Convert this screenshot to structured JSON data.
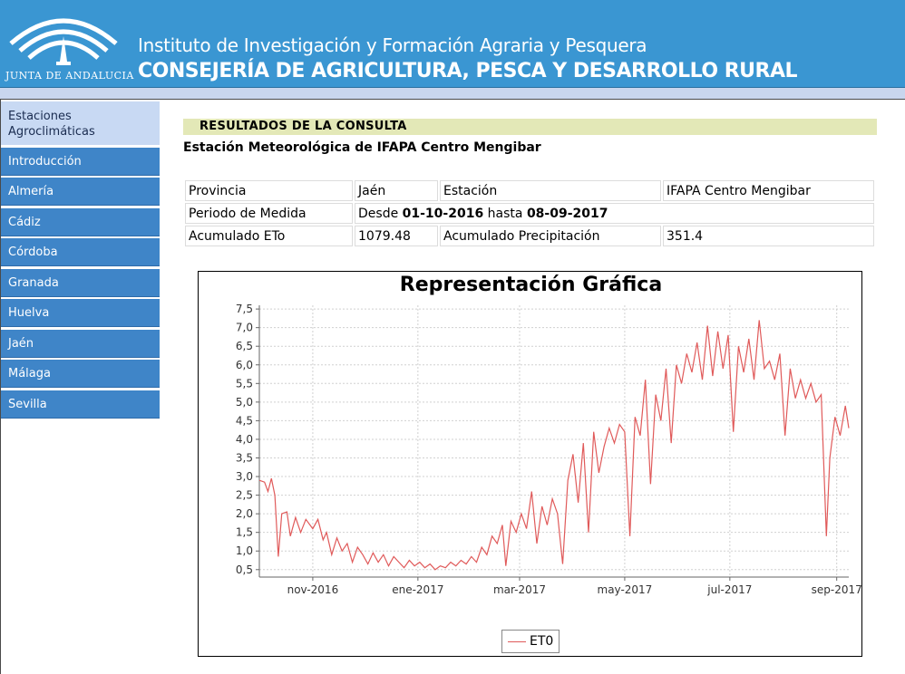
{
  "header": {
    "logo_text": "JUNTA DE ANDALUCIA",
    "institute": "Instituto de Investigación y Formación Agraria y Pesquera",
    "ministry": "CONSEJERÍA DE AGRICULTURA, PESCA Y DESARROLLO RURAL",
    "bg_color": "#3a96d2"
  },
  "sidebar": {
    "items": [
      {
        "label": "Estaciones Agroclimáticas",
        "active": true
      },
      {
        "label": "Introducción"
      },
      {
        "label": "Almería"
      },
      {
        "label": "Cádiz"
      },
      {
        "label": "Córdoba"
      },
      {
        "label": "Granada"
      },
      {
        "label": "Huelva"
      },
      {
        "label": "Jaén"
      },
      {
        "label": "Málaga"
      },
      {
        "label": "Sevilla"
      }
    ]
  },
  "results": {
    "heading": "RESULTADOS DE LA CONSULTA",
    "station_title": "Estación Meteorológica de IFAPA Centro Mengibar"
  },
  "info": {
    "provincia_label": "Provincia",
    "provincia_value": "Jaén",
    "estacion_label": "Estación",
    "estacion_value": "IFAPA Centro Mengibar",
    "periodo_label": "Periodo de Medida",
    "periodo_desde": "Desde",
    "periodo_start": "01-10-2016",
    "periodo_hasta": "hasta",
    "periodo_end": "08-09-2017",
    "eto_label": "Acumulado ETo",
    "eto_value": "1079.48",
    "precip_label": "Acumulado Precipitación",
    "precip_value": "351.4"
  },
  "chart_data": {
    "type": "line",
    "title": "Representación Gráfica",
    "xlabel": "",
    "ylabel": "",
    "ylim": [
      0.3,
      7.6
    ],
    "x_range": [
      "2016-10-01",
      "2017-09-08"
    ],
    "grid": true,
    "legend_position": "bottom",
    "y_ticks": [
      "0,5",
      "1,0",
      "1,5",
      "2,0",
      "2,5",
      "3,0",
      "3,5",
      "4,0",
      "4,5",
      "5,0",
      "5,5",
      "6,0",
      "6,5",
      "7,0",
      "7,5"
    ],
    "x_ticks": [
      {
        "date": "2016-11-01",
        "label": "nov-2016"
      },
      {
        "date": "2017-01-01",
        "label": "ene-2017"
      },
      {
        "date": "2017-03-01",
        "label": "mar-2017"
      },
      {
        "date": "2017-05-01",
        "label": "may-2017"
      },
      {
        "date": "2017-07-01",
        "label": "jul-2017"
      },
      {
        "date": "2017-09-01",
        "label": "sep-2017"
      }
    ],
    "series": [
      {
        "name": "ET0",
        "color": "#e05a5a",
        "points": [
          [
            "2016-10-01",
            2.9
          ],
          [
            "2016-10-04",
            2.85
          ],
          [
            "2016-10-06",
            2.6
          ],
          [
            "2016-10-08",
            2.95
          ],
          [
            "2016-10-10",
            2.5
          ],
          [
            "2016-10-12",
            0.85
          ],
          [
            "2016-10-14",
            2.0
          ],
          [
            "2016-10-17",
            2.05
          ],
          [
            "2016-10-19",
            1.4
          ],
          [
            "2016-10-22",
            1.9
          ],
          [
            "2016-10-25",
            1.5
          ],
          [
            "2016-10-28",
            1.85
          ],
          [
            "2016-11-01",
            1.6
          ],
          [
            "2016-11-04",
            1.85
          ],
          [
            "2016-11-07",
            1.3
          ],
          [
            "2016-11-09",
            1.5
          ],
          [
            "2016-11-12",
            0.9
          ],
          [
            "2016-11-15",
            1.35
          ],
          [
            "2016-11-18",
            1.0
          ],
          [
            "2016-11-21",
            1.2
          ],
          [
            "2016-11-24",
            0.7
          ],
          [
            "2016-11-27",
            1.1
          ],
          [
            "2016-11-30",
            0.9
          ],
          [
            "2016-12-03",
            0.65
          ],
          [
            "2016-12-06",
            0.95
          ],
          [
            "2016-12-09",
            0.7
          ],
          [
            "2016-12-12",
            0.9
          ],
          [
            "2016-12-15",
            0.6
          ],
          [
            "2016-12-18",
            0.85
          ],
          [
            "2016-12-21",
            0.7
          ],
          [
            "2016-12-24",
            0.55
          ],
          [
            "2016-12-27",
            0.75
          ],
          [
            "2016-12-30",
            0.6
          ],
          [
            "2017-01-02",
            0.7
          ],
          [
            "2017-01-05",
            0.55
          ],
          [
            "2017-01-08",
            0.65
          ],
          [
            "2017-01-11",
            0.5
          ],
          [
            "2017-01-14",
            0.6
          ],
          [
            "2017-01-17",
            0.55
          ],
          [
            "2017-01-20",
            0.7
          ],
          [
            "2017-01-23",
            0.6
          ],
          [
            "2017-01-26",
            0.75
          ],
          [
            "2017-01-29",
            0.65
          ],
          [
            "2017-02-01",
            0.85
          ],
          [
            "2017-02-04",
            0.7
          ],
          [
            "2017-02-07",
            1.1
          ],
          [
            "2017-02-10",
            0.9
          ],
          [
            "2017-02-13",
            1.4
          ],
          [
            "2017-02-16",
            1.2
          ],
          [
            "2017-02-19",
            1.7
          ],
          [
            "2017-02-21",
            0.6
          ],
          [
            "2017-02-24",
            1.8
          ],
          [
            "2017-02-27",
            1.5
          ],
          [
            "2017-03-02",
            2.0
          ],
          [
            "2017-03-05",
            1.6
          ],
          [
            "2017-03-08",
            2.6
          ],
          [
            "2017-03-11",
            1.2
          ],
          [
            "2017-03-14",
            2.2
          ],
          [
            "2017-03-17",
            1.7
          ],
          [
            "2017-03-20",
            2.4
          ],
          [
            "2017-03-23",
            2.0
          ],
          [
            "2017-03-26",
            0.65
          ],
          [
            "2017-03-29",
            2.9
          ],
          [
            "2017-04-01",
            3.6
          ],
          [
            "2017-04-04",
            2.3
          ],
          [
            "2017-04-07",
            3.9
          ],
          [
            "2017-04-10",
            1.5
          ],
          [
            "2017-04-13",
            4.2
          ],
          [
            "2017-04-16",
            3.1
          ],
          [
            "2017-04-19",
            3.8
          ],
          [
            "2017-04-22",
            4.3
          ],
          [
            "2017-04-25",
            3.9
          ],
          [
            "2017-04-28",
            4.4
          ],
          [
            "2017-05-01",
            4.2
          ],
          [
            "2017-05-04",
            1.4
          ],
          [
            "2017-05-07",
            4.6
          ],
          [
            "2017-05-10",
            4.1
          ],
          [
            "2017-05-13",
            5.6
          ],
          [
            "2017-05-16",
            2.8
          ],
          [
            "2017-05-19",
            5.2
          ],
          [
            "2017-05-22",
            4.5
          ],
          [
            "2017-05-25",
            5.9
          ],
          [
            "2017-05-28",
            3.9
          ],
          [
            "2017-05-31",
            6.0
          ],
          [
            "2017-06-03",
            5.5
          ],
          [
            "2017-06-06",
            6.3
          ],
          [
            "2017-06-09",
            5.8
          ],
          [
            "2017-06-12",
            6.6
          ],
          [
            "2017-06-15",
            5.6
          ],
          [
            "2017-06-18",
            7.05
          ],
          [
            "2017-06-21",
            5.7
          ],
          [
            "2017-06-24",
            6.9
          ],
          [
            "2017-06-27",
            5.9
          ],
          [
            "2017-06-30",
            6.8
          ],
          [
            "2017-07-03",
            4.2
          ],
          [
            "2017-07-06",
            6.5
          ],
          [
            "2017-07-09",
            5.8
          ],
          [
            "2017-07-12",
            6.7
          ],
          [
            "2017-07-15",
            5.6
          ],
          [
            "2017-07-18",
            7.2
          ],
          [
            "2017-07-21",
            5.9
          ],
          [
            "2017-07-24",
            6.1
          ],
          [
            "2017-07-27",
            5.6
          ],
          [
            "2017-07-30",
            6.3
          ],
          [
            "2017-08-02",
            4.1
          ],
          [
            "2017-08-05",
            5.9
          ],
          [
            "2017-08-08",
            5.1
          ],
          [
            "2017-08-11",
            5.6
          ],
          [
            "2017-08-14",
            5.1
          ],
          [
            "2017-08-17",
            5.5
          ],
          [
            "2017-08-20",
            5.0
          ],
          [
            "2017-08-23",
            5.2
          ],
          [
            "2017-08-26",
            1.4
          ],
          [
            "2017-08-28",
            3.5
          ],
          [
            "2017-08-31",
            4.6
          ],
          [
            "2017-09-03",
            4.1
          ],
          [
            "2017-09-06",
            4.9
          ],
          [
            "2017-09-08",
            4.3
          ]
        ]
      }
    ]
  }
}
